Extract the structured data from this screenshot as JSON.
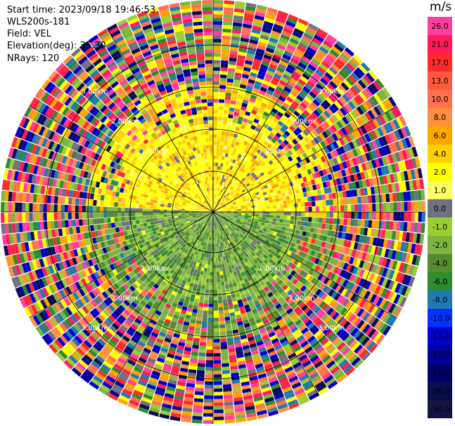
{
  "header": {
    "start_time": "Start time: 2023/09/18 19:46:53",
    "site": "WLS200s-181",
    "field": "Field: VEL",
    "elevation": "Elevation(deg): 35.30",
    "nrays": "NRays: 120"
  },
  "colorbar": {
    "unit": "m/s",
    "levels": [
      {
        "label": "26.0",
        "color": "#ff3fa0"
      },
      {
        "label": "21.0",
        "color": "#ff1a5a"
      },
      {
        "label": "17.0",
        "color": "#ff2a2a"
      },
      {
        "label": "13.0",
        "color": "#ff5a3a"
      },
      {
        "label": "10.0",
        "color": "#ff7050"
      },
      {
        "label": "8.0",
        "color": "#ff9040"
      },
      {
        "label": "6.0",
        "color": "#ffa500"
      },
      {
        "label": "4.0",
        "color": "#ffd000"
      },
      {
        "label": "2.0",
        "color": "#ffff00"
      },
      {
        "label": "1.0",
        "color": "#ffff60"
      },
      {
        "label": "0.0",
        "color": "#707080"
      },
      {
        "label": "-1.0",
        "color": "#9acd32"
      },
      {
        "label": "-2.0",
        "color": "#7cb342"
      },
      {
        "label": "-4.0",
        "color": "#558b2f"
      },
      {
        "label": "-6.0",
        "color": "#2e8b2e"
      },
      {
        "label": "-8.0",
        "color": "#1f7ab4"
      },
      {
        "label": "-10.0",
        "color": "#0033ff"
      },
      {
        "label": "-13.0",
        "color": "#0000cc"
      },
      {
        "label": "-17.0",
        "color": "#000099"
      },
      {
        "label": "-21.0",
        "color": "#00006a"
      },
      {
        "label": "-26.0",
        "color": "#0c0c50"
      },
      {
        "label": "-30.0",
        "color": "#141444"
      }
    ]
  },
  "range_labels": [
    "1.00km",
    "2.00km",
    "3.00km"
  ]
}
